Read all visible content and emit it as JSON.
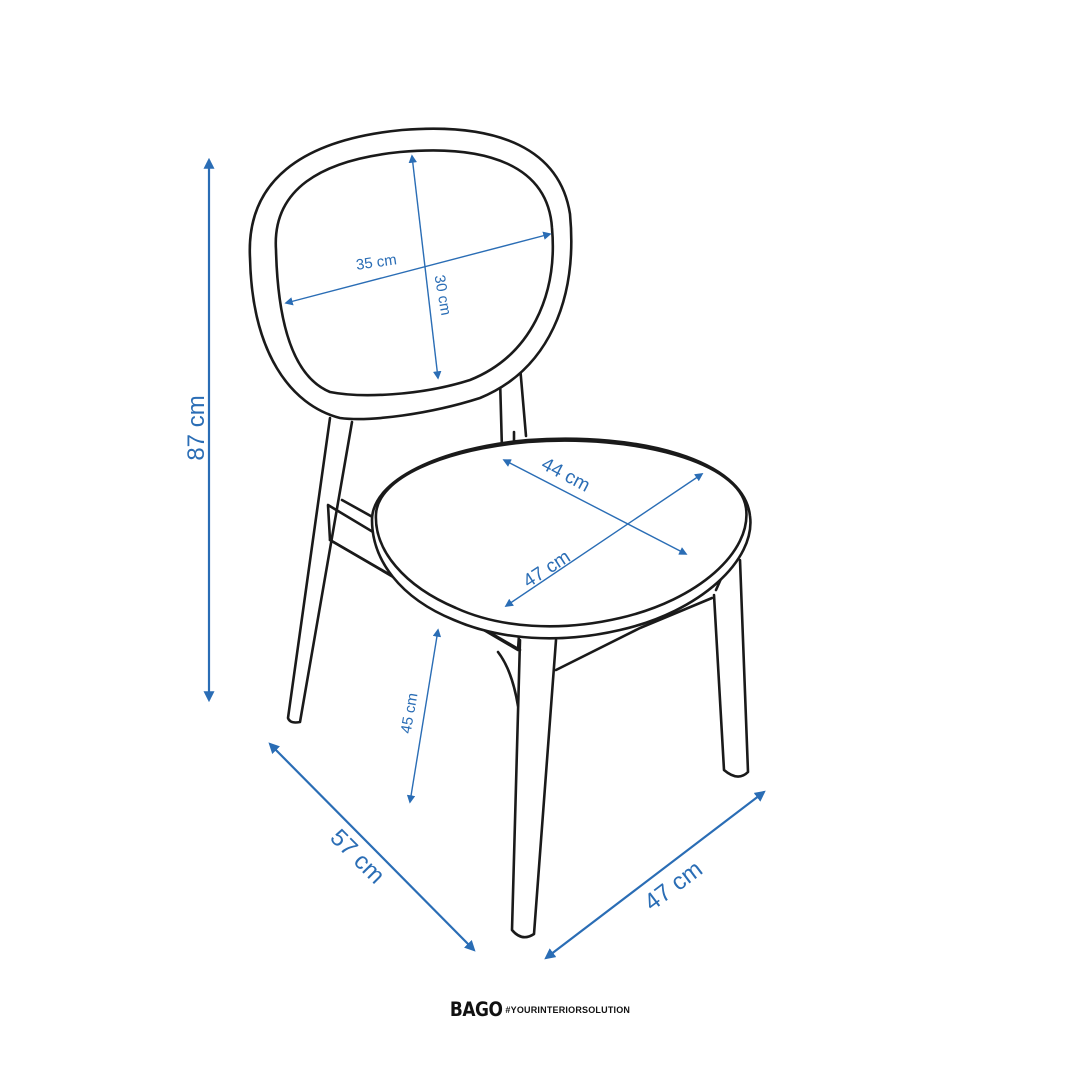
{
  "dimensions": {
    "back_width": "35 cm",
    "back_height": "30 cm",
    "seat_width": "44 cm",
    "seat_depth": "47 cm",
    "seat_height": "45 cm",
    "total_height": "87 cm",
    "overall_depth": "57 cm",
    "overall_width": "47 cm"
  },
  "brand": {
    "logo": "BAGO",
    "tagline": "#YOURINTERIORSOLUTION"
  },
  "colors": {
    "dimension": "#2a6db5",
    "outline": "#1a1a1a",
    "background": "#ffffff"
  }
}
